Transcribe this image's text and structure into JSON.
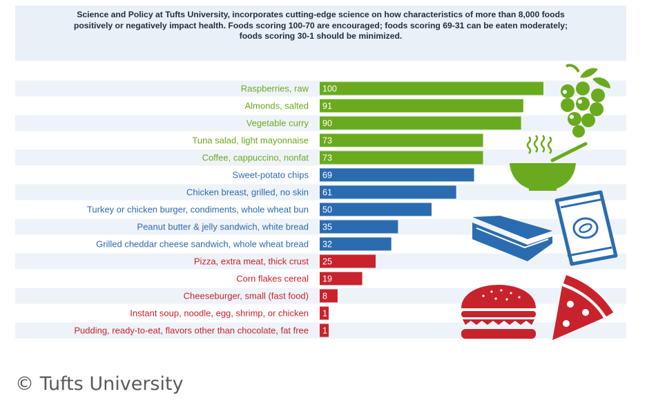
{
  "header": {
    "description": "Science and Policy at Tufts University, incorporates cutting-edge science on how characteristics of more than 8,000 foods positively or negatively impact health. Foods scoring 100-70 are encouraged; foods scoring 69-31 can be eaten moderately; foods scoring 30-1 should be minimized."
  },
  "footer": {
    "credit": "© Tufts University"
  },
  "colors": {
    "green": "#6aaa1e",
    "blue": "#2b6cb0",
    "red": "#c8232c",
    "row_bg": "#eef3f9"
  },
  "icons": [
    "grapes-icon",
    "soup-bowl-icon",
    "chips-bag-icon",
    "sandwich-icon",
    "burger-icon",
    "pizza-slice-icon"
  ],
  "chart_data": {
    "type": "bar",
    "orientation": "horizontal",
    "categories": [
      "Raspberries, raw",
      "Almonds, salted",
      "Vegetable curry",
      "Tuna salad, light mayonnaise",
      "Coffee, cappuccino, nonfat",
      "Sweet-potato chips",
      "Chicken breast, grilled, no skin",
      "Turkey or chicken burger, condiments, whole wheat bun",
      "Peanut butter & jelly sandwich, white bread",
      "Grilled cheddar cheese sandwich, whole wheat bread",
      "Pizza, extra meat, thick crust",
      "Corn flakes cereal",
      "Cheeseburger, small (fast food)",
      "Instant soup, noodle, egg, shrimp, or chicken",
      "Pudding, ready-to-eat, flavors other than chocolate, fat free"
    ],
    "values": [
      100,
      91,
      90,
      73,
      73,
      69,
      61,
      50,
      35,
      32,
      25,
      19,
      8,
      1,
      1
    ],
    "groups": [
      "green",
      "green",
      "green",
      "green",
      "green",
      "blue",
      "blue",
      "blue",
      "blue",
      "blue",
      "red",
      "red",
      "red",
      "red",
      "red"
    ],
    "xlim": [
      0,
      100
    ]
  }
}
